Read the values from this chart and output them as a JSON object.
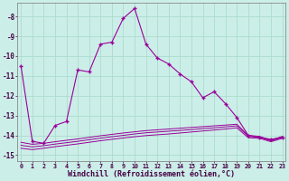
{
  "xlabel": "Windchill (Refroidissement éolien,°C)",
  "background_color": "#cceee8",
  "grid_color": "#aaddcc",
  "line_color": "#990099",
  "x_hours": [
    0,
    1,
    2,
    3,
    4,
    5,
    6,
    7,
    8,
    9,
    10,
    11,
    12,
    13,
    14,
    15,
    16,
    17,
    18,
    19,
    20,
    21,
    22,
    23
  ],
  "windchill_line": [
    -10.5,
    -14.3,
    -14.4,
    -13.5,
    -13.3,
    -10.7,
    -10.8,
    -9.4,
    -9.3,
    -8.1,
    -7.6,
    -9.4,
    -10.1,
    -10.4,
    -10.9,
    -11.3,
    -12.1,
    -11.8,
    -12.4,
    -13.1,
    -14.0,
    -14.1,
    -14.2,
    -14.1
  ],
  "flat_line1": [
    -14.35,
    -14.45,
    -14.4,
    -14.32,
    -14.25,
    -14.18,
    -14.1,
    -14.02,
    -13.95,
    -13.88,
    -13.82,
    -13.76,
    -13.72,
    -13.68,
    -13.64,
    -13.6,
    -13.56,
    -13.52,
    -13.48,
    -13.44,
    -14.0,
    -14.05,
    -14.25,
    -14.05
  ],
  "flat_line2": [
    -14.5,
    -14.58,
    -14.52,
    -14.44,
    -14.37,
    -14.3,
    -14.22,
    -14.14,
    -14.07,
    -14.0,
    -13.93,
    -13.87,
    -13.83,
    -13.79,
    -13.75,
    -13.71,
    -13.66,
    -13.62,
    -13.57,
    -13.52,
    -14.05,
    -14.1,
    -14.28,
    -14.1
  ],
  "flat_line3": [
    -14.65,
    -14.72,
    -14.65,
    -14.57,
    -14.5,
    -14.43,
    -14.35,
    -14.27,
    -14.2,
    -14.13,
    -14.07,
    -14.01,
    -13.97,
    -13.93,
    -13.88,
    -13.83,
    -13.78,
    -13.73,
    -13.68,
    -13.62,
    -14.12,
    -14.15,
    -14.32,
    -14.15
  ],
  "ylim": [
    -15.3,
    -7.3
  ],
  "yticks": [
    -8,
    -9,
    -10,
    -11,
    -12,
    -13,
    -14,
    -15
  ],
  "xlim": [
    -0.3,
    23.3
  ]
}
